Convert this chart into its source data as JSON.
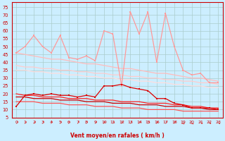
{
  "bg_color": "#cceeff",
  "xlabel": "Vent moyen/en rafales ( km/h )",
  "xlim": [
    -0.5,
    23.5
  ],
  "ylim": [
    5,
    78
  ],
  "yticks": [
    5,
    10,
    15,
    20,
    25,
    30,
    35,
    40,
    45,
    50,
    55,
    60,
    65,
    70,
    75
  ],
  "xticks": [
    0,
    1,
    2,
    3,
    4,
    5,
    6,
    7,
    8,
    9,
    10,
    11,
    12,
    13,
    14,
    15,
    16,
    17,
    18,
    19,
    20,
    21,
    22,
    23
  ],
  "hours": [
    0,
    1,
    2,
    3,
    4,
    5,
    6,
    7,
    8,
    9,
    10,
    11,
    12,
    13,
    14,
    15,
    16,
    17,
    18,
    19,
    20,
    21,
    22,
    23
  ],
  "series_rafales": [
    46,
    50,
    57,
    50,
    46,
    57,
    43,
    42,
    44,
    41,
    60,
    58,
    25,
    72,
    58,
    72,
    40,
    71,
    50,
    35,
    32,
    33,
    27,
    27
  ],
  "series_trend1": [
    46,
    45,
    44,
    43,
    42,
    42,
    41,
    40,
    39,
    39,
    38,
    37,
    36,
    36,
    35,
    34,
    33,
    33,
    32,
    31,
    30,
    30,
    29,
    28
  ],
  "series_trend2": [
    38,
    37,
    37,
    36,
    36,
    35,
    35,
    34,
    34,
    33,
    33,
    32,
    32,
    31,
    31,
    30,
    30,
    29,
    29,
    28,
    28,
    27,
    27,
    26
  ],
  "series_trend3": [
    35,
    35,
    34,
    34,
    33,
    33,
    32,
    32,
    31,
    31,
    30,
    30,
    29,
    29,
    28,
    28,
    27,
    27,
    26,
    26,
    25,
    25,
    24,
    24
  ],
  "series_wind_sp": [
    12,
    19,
    20,
    19,
    20,
    19,
    19,
    18,
    19,
    18,
    25,
    25,
    26,
    24,
    23,
    22,
    17,
    17,
    14,
    13,
    11,
    11,
    11,
    10
  ],
  "series_wind_t1": [
    20,
    19,
    19,
    18,
    18,
    18,
    17,
    17,
    17,
    16,
    16,
    16,
    15,
    15,
    15,
    14,
    14,
    14,
    13,
    13,
    12,
    12,
    11,
    11
  ],
  "series_wind_t2": [
    18,
    18,
    17,
    17,
    17,
    16,
    16,
    16,
    15,
    15,
    15,
    14,
    14,
    14,
    13,
    13,
    13,
    12,
    12,
    12,
    11,
    11,
    10,
    10
  ],
  "series_wind_t3": [
    15,
    15,
    15,
    14,
    14,
    14,
    13,
    13,
    13,
    12,
    12,
    12,
    11,
    11,
    11,
    10,
    10,
    10,
    10,
    9,
    9,
    9,
    9,
    9
  ],
  "col_rafales": "#ff9999",
  "col_trend1": "#ffbbbb",
  "col_trend2": "#ffcccc",
  "col_trend3": "#ffdddd",
  "col_wind_sp": "#dd0000",
  "col_wind_t1": "#ff2222",
  "col_wind_t2": "#cc0000",
  "col_wind_t3": "#ff5555",
  "arrow_color": "#dd2222",
  "spine_color": "#cc0000",
  "tick_color": "#cc0000",
  "grid_color": "#aacccc"
}
